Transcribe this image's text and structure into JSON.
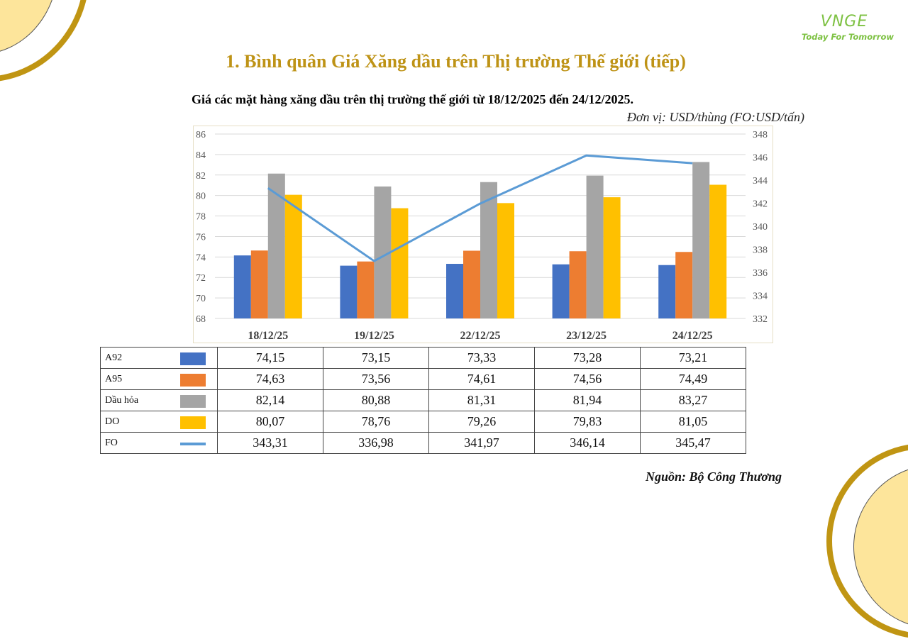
{
  "logo": {
    "brand": "VNGE",
    "tagline": "Today For Tomorrow"
  },
  "header": {
    "title": "1. Bình quân Giá Xăng dầu trên Thị trường Thế giới (tiếp)"
  },
  "chart_title": "Giá các mặt hàng xăng dầu trên thị trường thế giới từ 18/12/2025 đến 24/12/2025.",
  "unit_note": "Đơn vị:  USD/thùng (FO:USD/tấn)",
  "source": "Nguồn: Bộ Công Thương",
  "colors": {
    "A92": "#4472c4",
    "A95": "#ed7d31",
    "Dau_hoa": "#a5a5a5",
    "DO": "#ffc000",
    "FO": "#5b9bd5",
    "title_gold": "#be9316"
  },
  "chart_data": {
    "type": "bar",
    "combo": "bar + line (secondary axis)",
    "title": "Giá các mặt hàng xăng dầu trên thị trường thế giới từ 18/12/2025 đến 24/12/2025.",
    "categories": [
      "18/12/25",
      "19/12/25",
      "22/12/25",
      "23/12/25",
      "24/12/25"
    ],
    "series": [
      {
        "name": "A92",
        "type": "bar",
        "axis": "left",
        "color": "#4472c4",
        "values": [
          74.15,
          73.15,
          73.33,
          73.28,
          73.21
        ]
      },
      {
        "name": "A95",
        "type": "bar",
        "axis": "left",
        "color": "#ed7d31",
        "values": [
          74.63,
          73.56,
          74.61,
          74.56,
          74.49
        ]
      },
      {
        "name": "Dầu hỏa",
        "type": "bar",
        "axis": "left",
        "color": "#a5a5a5",
        "values": [
          82.14,
          80.88,
          81.31,
          81.94,
          83.27
        ]
      },
      {
        "name": "DO",
        "type": "bar",
        "axis": "left",
        "color": "#ffc000",
        "values": [
          80.07,
          78.76,
          79.26,
          79.83,
          81.05
        ]
      },
      {
        "name": "FO",
        "type": "line",
        "axis": "right",
        "color": "#5b9bd5",
        "values": [
          343.31,
          336.98,
          341.97,
          346.14,
          345.47
        ]
      }
    ],
    "left_axis": {
      "min": 68,
      "max": 86,
      "step": 2,
      "ticks": [
        "68",
        "70",
        "72",
        "74",
        "76",
        "78",
        "80",
        "82",
        "84",
        "86"
      ]
    },
    "right_axis": {
      "min": 332,
      "max": 348,
      "step": 2,
      "ticks": [
        "332",
        "334",
        "336",
        "338",
        "340",
        "342",
        "344",
        "346",
        "348"
      ]
    },
    "xlabel": "",
    "ylabel": "USD/thùng",
    "y2label": "USD/tấn",
    "grid": true,
    "legend": "table below chart"
  },
  "table": {
    "rows": [
      {
        "name": "A92",
        "values": [
          "74,15",
          "73,15",
          "73,33",
          "73,28",
          "73,21"
        ]
      },
      {
        "name": "A95",
        "values": [
          "74,63",
          "73,56",
          "74,61",
          "74,56",
          "74,49"
        ]
      },
      {
        "name": "Dầu hỏa",
        "values": [
          "82,14",
          "80,88",
          "81,31",
          "81,94",
          "83,27"
        ]
      },
      {
        "name": "DO",
        "values": [
          "80,07",
          "78,76",
          "79,26",
          "79,83",
          "81,05"
        ]
      },
      {
        "name": "FO",
        "values": [
          "343,31",
          "336,98",
          "341,97",
          "346,14",
          "345,47"
        ]
      }
    ]
  }
}
